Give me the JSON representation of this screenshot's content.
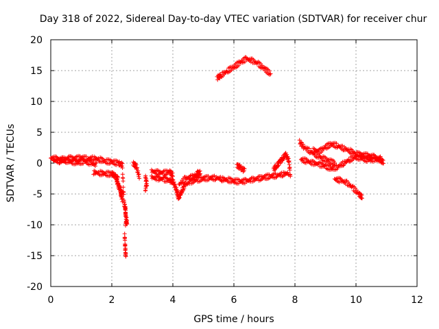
{
  "chart_data": {
    "type": "scatter",
    "title": "Day 318 of 2022, Sidereal Day-to-day VTEC variation (SDTVAR) for receiver chur",
    "xlabel": "GPS time / hours",
    "ylabel": "SDTVAR / TECUs",
    "xlim": [
      0,
      12
    ],
    "ylim": [
      -20,
      20
    ],
    "xticks": [
      "0",
      "2",
      "4",
      "6",
      "8",
      "10",
      "12"
    ],
    "yticks": [
      "20",
      "15",
      "10",
      "5",
      "0",
      "-5",
      "-10",
      "-15",
      "-20"
    ],
    "grid": true,
    "marker": "+",
    "color": "#ff0000",
    "series": [
      {
        "name": "SDTVAR",
        "segments": [
          [
            [
              0.0,
              0.8
            ],
            [
              0.2,
              0.7
            ],
            [
              0.4,
              0.6
            ],
            [
              0.6,
              0.8
            ],
            [
              0.8,
              0.7
            ],
            [
              1.0,
              0.9
            ],
            [
              1.2,
              0.7
            ],
            [
              1.4,
              0.8
            ],
            [
              1.6,
              0.6
            ],
            [
              1.8,
              0.3
            ],
            [
              2.0,
              0.2
            ],
            [
              2.2,
              0.0
            ],
            [
              2.35,
              -0.3
            ]
          ],
          [
            [
              0.1,
              0.5
            ],
            [
              0.3,
              0.3
            ],
            [
              0.5,
              0.4
            ],
            [
              0.7,
              0.2
            ],
            [
              0.9,
              0.1
            ],
            [
              1.1,
              0.3
            ],
            [
              1.3,
              0.0
            ],
            [
              1.5,
              -0.3
            ]
          ],
          [
            [
              1.4,
              -1.5
            ],
            [
              1.6,
              -1.6
            ],
            [
              1.8,
              -1.7
            ],
            [
              2.0,
              -1.8
            ],
            [
              2.1,
              -2.0
            ],
            [
              2.2,
              -2.5
            ]
          ],
          [
            [
              2.15,
              -2.5
            ],
            [
              2.2,
              -3.5
            ],
            [
              2.25,
              -4.0
            ],
            [
              2.3,
              -4.5
            ],
            [
              2.3,
              -5.0
            ],
            [
              2.35,
              -6.0
            ]
          ],
          [
            [
              2.35,
              -1.0
            ],
            [
              2.4,
              -6.5
            ],
            [
              2.45,
              -7.5
            ],
            [
              2.45,
              -8.5
            ],
            [
              2.5,
              -9.5
            ],
            [
              2.45,
              -10.0
            ]
          ],
          [
            [
              2.42,
              -11.5
            ],
            [
              2.44,
              -13.8
            ],
            [
              2.46,
              -15.3
            ]
          ],
          [
            [
              2.7,
              0.0
            ],
            [
              2.8,
              -0.5
            ],
            [
              2.9,
              -2.3
            ]
          ],
          [
            [
              3.1,
              -2.3
            ],
            [
              3.15,
              -3.3
            ],
            [
              3.1,
              -4.5
            ]
          ],
          [
            [
              3.3,
              -1.3
            ],
            [
              3.5,
              -1.5
            ],
            [
              3.7,
              -1.6
            ],
            [
              3.9,
              -1.4
            ],
            [
              4.0,
              -2.0
            ]
          ],
          [
            [
              3.3,
              -2.3
            ],
            [
              3.5,
              -2.5
            ],
            [
              3.7,
              -2.6
            ],
            [
              3.9,
              -2.8
            ],
            [
              4.0,
              -3.0
            ],
            [
              4.1,
              -4.0
            ],
            [
              4.15,
              -5.0
            ],
            [
              4.2,
              -5.8
            ]
          ],
          [
            [
              4.2,
              -5.5
            ],
            [
              4.3,
              -4.5
            ],
            [
              4.4,
              -3.5
            ],
            [
              4.6,
              -3.0
            ],
            [
              4.8,
              -2.7
            ],
            [
              5.0,
              -2.5
            ],
            [
              5.2,
              -2.4
            ],
            [
              5.4,
              -2.4
            ],
            [
              5.6,
              -2.5
            ]
          ],
          [
            [
              4.2,
              -3.5
            ],
            [
              4.4,
              -2.5
            ],
            [
              4.6,
              -2.3
            ],
            [
              4.8,
              -2.0
            ],
            [
              4.9,
              -1.5
            ],
            [
              4.7,
              -1.8
            ]
          ],
          [
            [
              5.6,
              -2.6
            ],
            [
              5.8,
              -2.7
            ],
            [
              6.0,
              -2.9
            ],
            [
              6.2,
              -3.0
            ],
            [
              6.4,
              -2.9
            ],
            [
              6.6,
              -2.7
            ],
            [
              6.8,
              -2.5
            ],
            [
              7.0,
              -2.3
            ],
            [
              7.2,
              -2.1
            ],
            [
              7.4,
              -2.0
            ],
            [
              7.6,
              -1.8
            ],
            [
              7.8,
              -1.6
            ]
          ],
          [
            [
              6.1,
              -0.3
            ],
            [
              6.2,
              -0.7
            ],
            [
              6.35,
              -1.2
            ]
          ],
          [
            [
              7.3,
              -1.0
            ],
            [
              7.4,
              -0.5
            ],
            [
              7.5,
              0.2
            ],
            [
              7.6,
              0.8
            ],
            [
              7.7,
              1.3
            ],
            [
              7.8,
              0.5
            ],
            [
              7.85,
              -2.0
            ]
          ],
          [
            [
              5.45,
              13.8
            ],
            [
              5.6,
              14.3
            ],
            [
              5.8,
              15.0
            ],
            [
              6.0,
              15.6
            ],
            [
              6.2,
              16.3
            ],
            [
              6.4,
              16.9
            ],
            [
              6.6,
              16.6
            ],
            [
              6.8,
              16.1
            ],
            [
              7.0,
              15.3
            ],
            [
              7.2,
              14.5
            ]
          ],
          [
            [
              8.15,
              3.4
            ],
            [
              8.3,
              2.6
            ],
            [
              8.5,
              1.9
            ],
            [
              8.7,
              1.3
            ],
            [
              8.9,
              0.8
            ],
            [
              9.1,
              0.4
            ],
            [
              9.3,
              0.0
            ]
          ],
          [
            [
              8.2,
              0.6
            ],
            [
              8.4,
              0.3
            ],
            [
              8.6,
              0.0
            ],
            [
              8.8,
              -0.2
            ],
            [
              9.0,
              -0.5
            ],
            [
              9.2,
              -0.9
            ],
            [
              9.4,
              -0.6
            ],
            [
              9.6,
              0.0
            ],
            [
              9.8,
              0.6
            ],
            [
              10.0,
              1.0
            ],
            [
              10.2,
              0.8
            ],
            [
              10.4,
              0.5
            ],
            [
              10.6,
              0.6
            ],
            [
              10.8,
              0.4
            ],
            [
              10.9,
              0.3
            ]
          ],
          [
            [
              8.6,
              2.1
            ],
            [
              8.8,
              1.9
            ],
            [
              9.0,
              2.6
            ],
            [
              9.2,
              3.1
            ],
            [
              9.4,
              2.8
            ],
            [
              9.6,
              2.4
            ],
            [
              9.8,
              2.0
            ],
            [
              10.0,
              1.5
            ],
            [
              10.2,
              1.3
            ],
            [
              10.4,
              1.2
            ],
            [
              10.6,
              1.0
            ],
            [
              10.8,
              0.7
            ]
          ],
          [
            [
              9.3,
              -2.6
            ],
            [
              9.5,
              -2.8
            ],
            [
              9.7,
              -3.2
            ],
            [
              9.9,
              -4.0
            ],
            [
              10.1,
              -5.0
            ],
            [
              10.2,
              -5.6
            ]
          ]
        ]
      }
    ]
  }
}
